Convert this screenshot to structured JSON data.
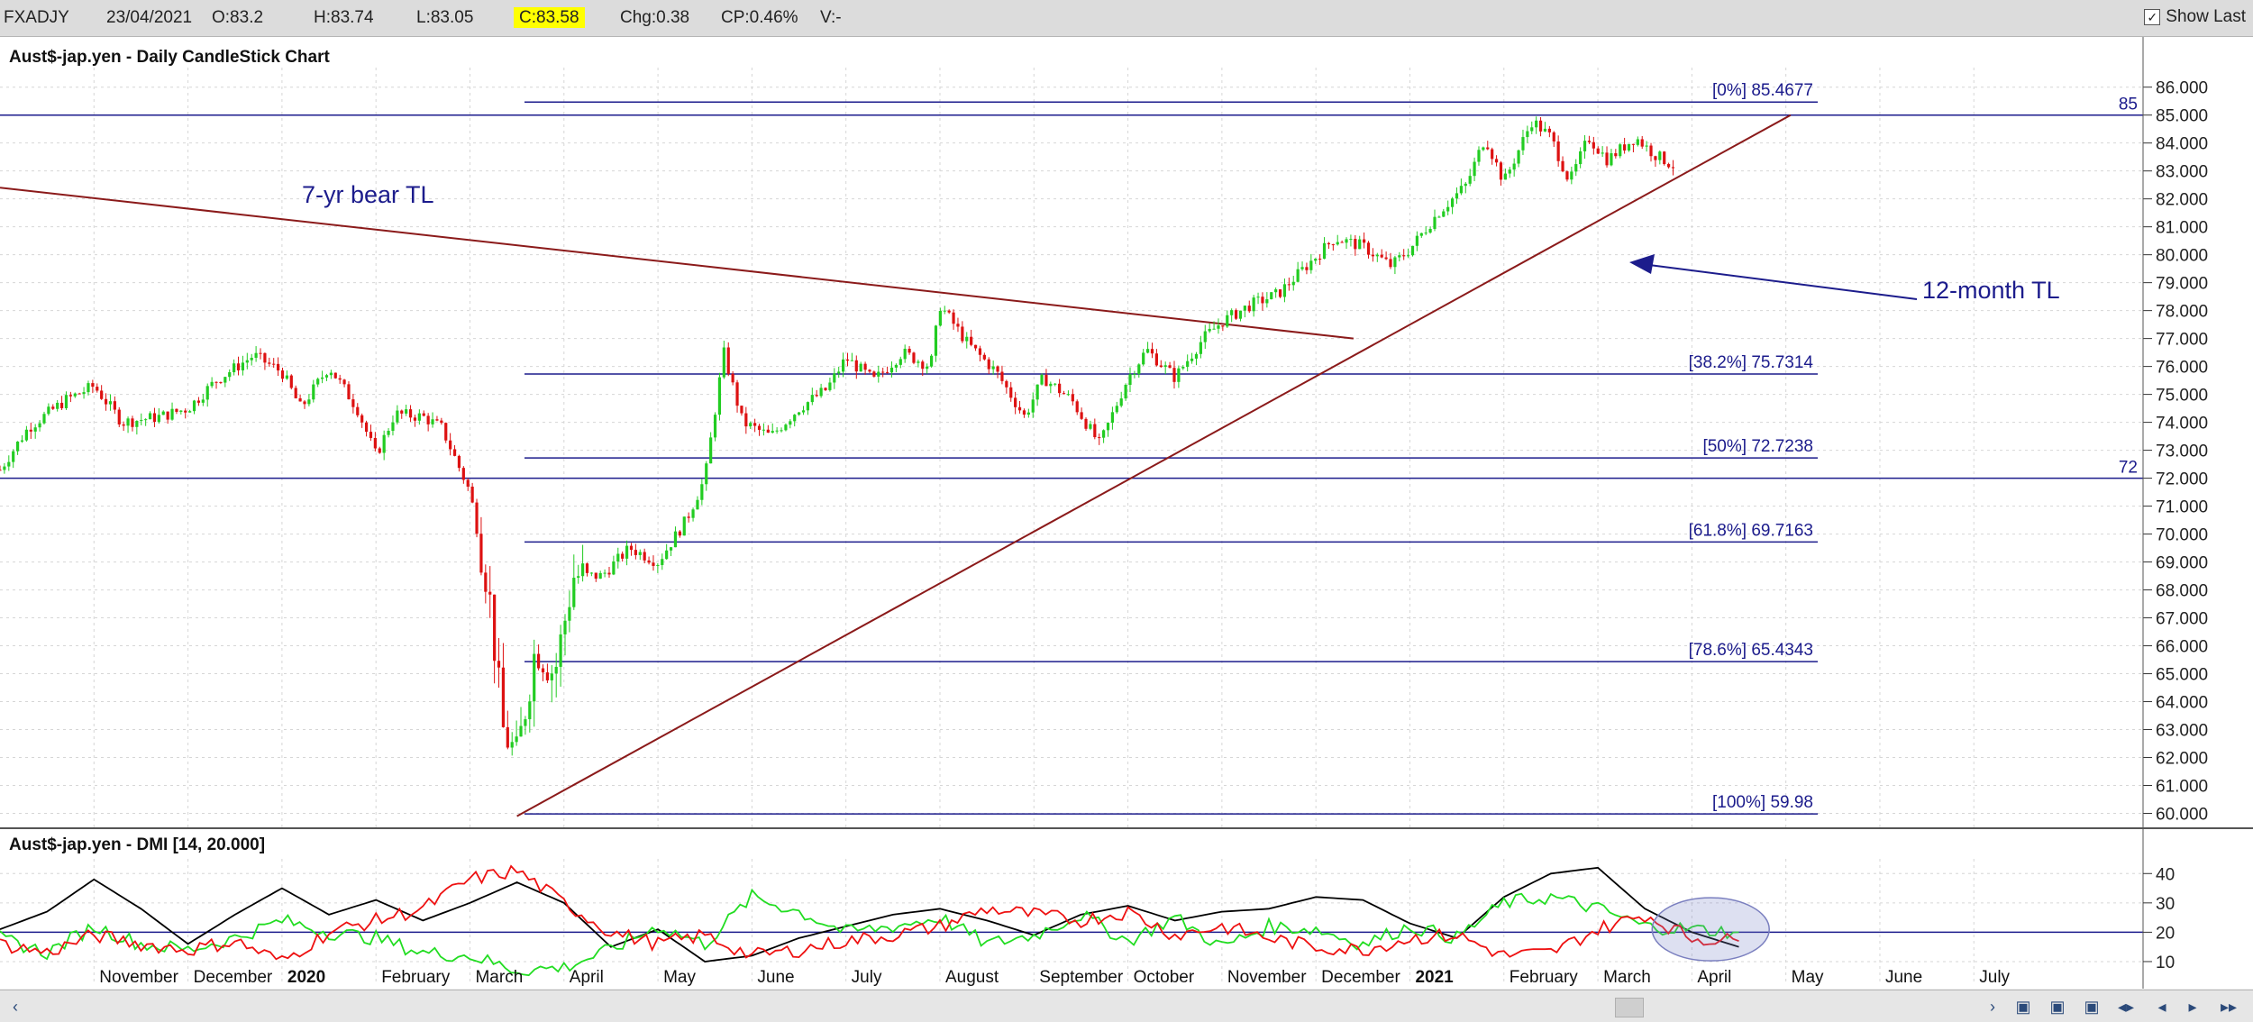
{
  "header": {
    "symbol": "FXADJY",
    "date": "23/04/2021",
    "open": "O:83.2",
    "high": "H:83.74",
    "low": "L:83.05",
    "close": "C:83.58",
    "change": "Chg:0.38",
    "change_pct": "CP:0.46%",
    "volume": "V:-",
    "show_last_label": "Show Last",
    "show_last_checked": "✓"
  },
  "colors": {
    "fib": "#1c1c8c",
    "trendline": "#8b1a1a",
    "dmi_adx": "#000000",
    "dmi_plus": "#22dd22",
    "dmi_minus": "#ee1111",
    "candle_up": "#22cc22",
    "candle_down": "#dd1111"
  },
  "chart_data": [
    {
      "type": "candlestick",
      "title": "Aust$-jap.yen - Daily CandleStick Chart",
      "y_ticks": [
        "86.000",
        "85.000",
        "84.000",
        "83.000",
        "82.000",
        "81.000",
        "80.000",
        "79.000",
        "78.000",
        "77.000",
        "76.000",
        "75.000",
        "74.000",
        "73.000",
        "72.000",
        "71.000",
        "70.000",
        "69.000",
        "68.000",
        "67.000",
        "66.000",
        "65.000",
        "64.000",
        "63.000",
        "62.000",
        "61.000",
        "60.000"
      ],
      "ylim": [
        59.5,
        86.7
      ],
      "x_tick_labels": [
        "November",
        "December",
        "2020",
        "February",
        "March",
        "April",
        "May",
        "June",
        "July",
        "August",
        "September",
        "October",
        "November",
        "December",
        "2021",
        "February",
        "March",
        "April",
        "May",
        "June",
        "July"
      ],
      "x_tick_index": [
        3.0,
        4.0,
        5.0,
        6.0,
        7.0,
        8.0,
        9.0,
        10.0,
        11.0,
        12.0,
        13.0,
        14.0,
        15.0,
        16.0,
        17.0,
        18.0,
        19.0,
        20.0,
        21.0,
        22.0,
        23.0
      ],
      "xlim": [
        2.0,
        24.8
      ],
      "price_path": [
        [
          2.0,
          72.3
        ],
        [
          2.3,
          73.8
        ],
        [
          2.7,
          74.8
        ],
        [
          3.0,
          75.3
        ],
        [
          3.3,
          74.0
        ],
        [
          3.7,
          74.2
        ],
        [
          4.0,
          74.5
        ],
        [
          4.3,
          75.5
        ],
        [
          4.7,
          76.4
        ],
        [
          5.0,
          75.8
        ],
        [
          5.2,
          74.5
        ],
        [
          5.5,
          76.0
        ],
        [
          5.8,
          74.5
        ],
        [
          6.0,
          72.8
        ],
        [
          6.2,
          74.3
        ],
        [
          6.5,
          74.2
        ],
        [
          6.7,
          73.8
        ],
        [
          7.0,
          71.5
        ],
        [
          7.2,
          68.0
        ],
        [
          7.35,
          63.0
        ],
        [
          7.5,
          62.0
        ],
        [
          7.7,
          66.0
        ],
        [
          7.9,
          65.0
        ],
        [
          8.1,
          68.5
        ],
        [
          8.4,
          68.5
        ],
        [
          8.7,
          69.5
        ],
        [
          9.0,
          69.0
        ],
        [
          9.3,
          70.5
        ],
        [
          9.5,
          72.0
        ],
        [
          9.7,
          76.5
        ],
        [
          9.9,
          74.0
        ],
        [
          10.2,
          73.5
        ],
        [
          10.5,
          74.5
        ],
        [
          10.8,
          75.2
        ],
        [
          11.0,
          76.3
        ],
        [
          11.3,
          75.5
        ],
        [
          11.6,
          76.5
        ],
        [
          11.9,
          76.0
        ],
        [
          12.0,
          78.2
        ],
        [
          12.3,
          76.8
        ],
        [
          12.6,
          75.8
        ],
        [
          12.9,
          74.2
        ],
        [
          13.1,
          75.6
        ],
        [
          13.4,
          74.8
        ],
        [
          13.7,
          73.2
        ],
        [
          14.0,
          75.6
        ],
        [
          14.2,
          76.6
        ],
        [
          14.5,
          75.6
        ],
        [
          14.8,
          77.0
        ],
        [
          15.0,
          77.6
        ],
        [
          15.3,
          78.2
        ],
        [
          15.6,
          78.6
        ],
        [
          15.9,
          79.6
        ],
        [
          16.2,
          80.6
        ],
        [
          16.5,
          80.3
        ],
        [
          16.8,
          79.6
        ],
        [
          17.0,
          80.2
        ],
        [
          17.3,
          81.5
        ],
        [
          17.6,
          82.5
        ],
        [
          17.8,
          84.2
        ],
        [
          18.0,
          82.6
        ],
        [
          18.3,
          84.8
        ],
        [
          18.5,
          84.2
        ],
        [
          18.7,
          82.6
        ],
        [
          18.9,
          84.2
        ],
        [
          19.1,
          83.4
        ],
        [
          19.4,
          84.2
        ],
        [
          19.6,
          83.6
        ],
        [
          19.8,
          83.2
        ]
      ],
      "fib_levels": [
        {
          "label": "[0%] 85.4677",
          "value": 85.4677
        },
        {
          "label": "[38.2%] 75.7314",
          "value": 75.7314
        },
        {
          "label": "[50%] 72.7238",
          "value": 72.7238
        },
        {
          "label": "[61.8%] 69.7163",
          "value": 69.7163
        },
        {
          "label": "[78.6%] 65.4343",
          "value": 65.4343
        },
        {
          "label": "[100%] 59.98",
          "value": 59.98
        }
      ],
      "horizontal_lines": [
        {
          "label": "85",
          "value": 85.0
        },
        {
          "label": "72",
          "value": 72.0
        }
      ],
      "trendlines": [
        {
          "label": "7-yr bear TL",
          "from": [
            2.0,
            82.4
          ],
          "to": [
            16.4,
            77.0
          ]
        },
        {
          "label": "12-month TL",
          "from": [
            7.5,
            59.9
          ],
          "to": [
            21.05,
            85.0
          ]
        }
      ],
      "arrow_label": "12-month TL"
    },
    {
      "type": "line",
      "title": "Aust$-jap.yen - DMI [14, 20.000]",
      "y_ticks": [
        "40",
        "30",
        "20",
        "10"
      ],
      "ylim": [
        2,
        45
      ],
      "threshold": 20,
      "series": [
        {
          "key": "adx",
          "values": [
            [
              2.0,
              21
            ],
            [
              2.5,
              27
            ],
            [
              3.0,
              38
            ],
            [
              3.5,
              28
            ],
            [
              4.0,
              16
            ],
            [
              4.5,
              26
            ],
            [
              5.0,
              35
            ],
            [
              5.5,
              26
            ],
            [
              6.0,
              31
            ],
            [
              6.5,
              24
            ],
            [
              7.0,
              30
            ],
            [
              7.5,
              37
            ],
            [
              8.0,
              30
            ],
            [
              8.5,
              15
            ],
            [
              9.0,
              21
            ],
            [
              9.5,
              10
            ],
            [
              10.0,
              12
            ],
            [
              10.5,
              18
            ],
            [
              11.0,
              22
            ],
            [
              11.5,
              26
            ],
            [
              12.0,
              28
            ],
            [
              12.5,
              24
            ],
            [
              13.0,
              19
            ],
            [
              13.5,
              26
            ],
            [
              14.0,
              29
            ],
            [
              14.5,
              24
            ],
            [
              15.0,
              27
            ],
            [
              15.5,
              28
            ],
            [
              16.0,
              32
            ],
            [
              16.5,
              31
            ],
            [
              17.0,
              23
            ],
            [
              17.5,
              18
            ],
            [
              18.0,
              32
            ],
            [
              18.5,
              40
            ],
            [
              19.0,
              42
            ],
            [
              19.5,
              28
            ],
            [
              20.0,
              20
            ],
            [
              20.5,
              15
            ]
          ]
        },
        {
          "key": "plus_di",
          "values": [
            [
              2.0,
              18
            ],
            [
              2.5,
              13
            ],
            [
              3.0,
              22
            ],
            [
              3.5,
              16
            ],
            [
              4.0,
              14
            ],
            [
              4.5,
              18
            ],
            [
              5.0,
              24
            ],
            [
              5.5,
              20
            ],
            [
              6.0,
              18
            ],
            [
              6.5,
              13
            ],
            [
              7.0,
              12
            ],
            [
              7.5,
              7
            ],
            [
              8.0,
              8
            ],
            [
              8.5,
              14
            ],
            [
              9.0,
              22
            ],
            [
              9.5,
              16
            ],
            [
              10.0,
              32
            ],
            [
              10.5,
              27
            ],
            [
              11.0,
              20
            ],
            [
              11.5,
              22
            ],
            [
              12.0,
              25
            ],
            [
              12.5,
              16
            ],
            [
              13.0,
              19
            ],
            [
              13.5,
              26
            ],
            [
              14.0,
              17
            ],
            [
              14.5,
              25
            ],
            [
              15.0,
              15
            ],
            [
              15.5,
              22
            ],
            [
              16.0,
              21
            ],
            [
              16.5,
              16
            ],
            [
              17.0,
              22
            ],
            [
              17.5,
              18
            ],
            [
              18.0,
              30
            ],
            [
              18.5,
              32
            ],
            [
              19.0,
              28
            ],
            [
              19.5,
              22
            ],
            [
              20.0,
              21
            ],
            [
              20.5,
              20
            ]
          ]
        },
        {
          "key": "minus_di",
          "values": [
            [
              2.0,
              16
            ],
            [
              2.5,
              13
            ],
            [
              3.0,
              19
            ],
            [
              3.5,
              16
            ],
            [
              4.0,
              14
            ],
            [
              4.5,
              17
            ],
            [
              5.0,
              10
            ],
            [
              5.5,
              20
            ],
            [
              6.0,
              24
            ],
            [
              6.5,
              28
            ],
            [
              7.0,
              38
            ],
            [
              7.5,
              41
            ],
            [
              8.0,
              30
            ],
            [
              8.5,
              20
            ],
            [
              9.0,
              16
            ],
            [
              9.5,
              19
            ],
            [
              10.0,
              12
            ],
            [
              10.5,
              14
            ],
            [
              11.0,
              17
            ],
            [
              11.5,
              19
            ],
            [
              12.0,
              22
            ],
            [
              12.5,
              28
            ],
            [
              13.0,
              26
            ],
            [
              13.5,
              24
            ],
            [
              14.0,
              27
            ],
            [
              14.5,
              19
            ],
            [
              15.0,
              22
            ],
            [
              15.5,
              18
            ],
            [
              16.0,
              15
            ],
            [
              16.5,
              14
            ],
            [
              17.0,
              18
            ],
            [
              17.5,
              19
            ],
            [
              18.0,
              12
            ],
            [
              18.5,
              13
            ],
            [
              19.0,
              21
            ],
            [
              19.5,
              26
            ],
            [
              20.0,
              18
            ],
            [
              20.5,
              17
            ]
          ]
        }
      ],
      "circle_center": [
        20.2,
        21
      ],
      "x_tick_labels": [
        "November",
        "December",
        "2020",
        "February",
        "March",
        "April",
        "May",
        "June",
        "July",
        "August",
        "September",
        "October",
        "November",
        "December",
        "2021",
        "February",
        "March",
        "April",
        "May",
        "June",
        "July"
      ]
    }
  ]
}
